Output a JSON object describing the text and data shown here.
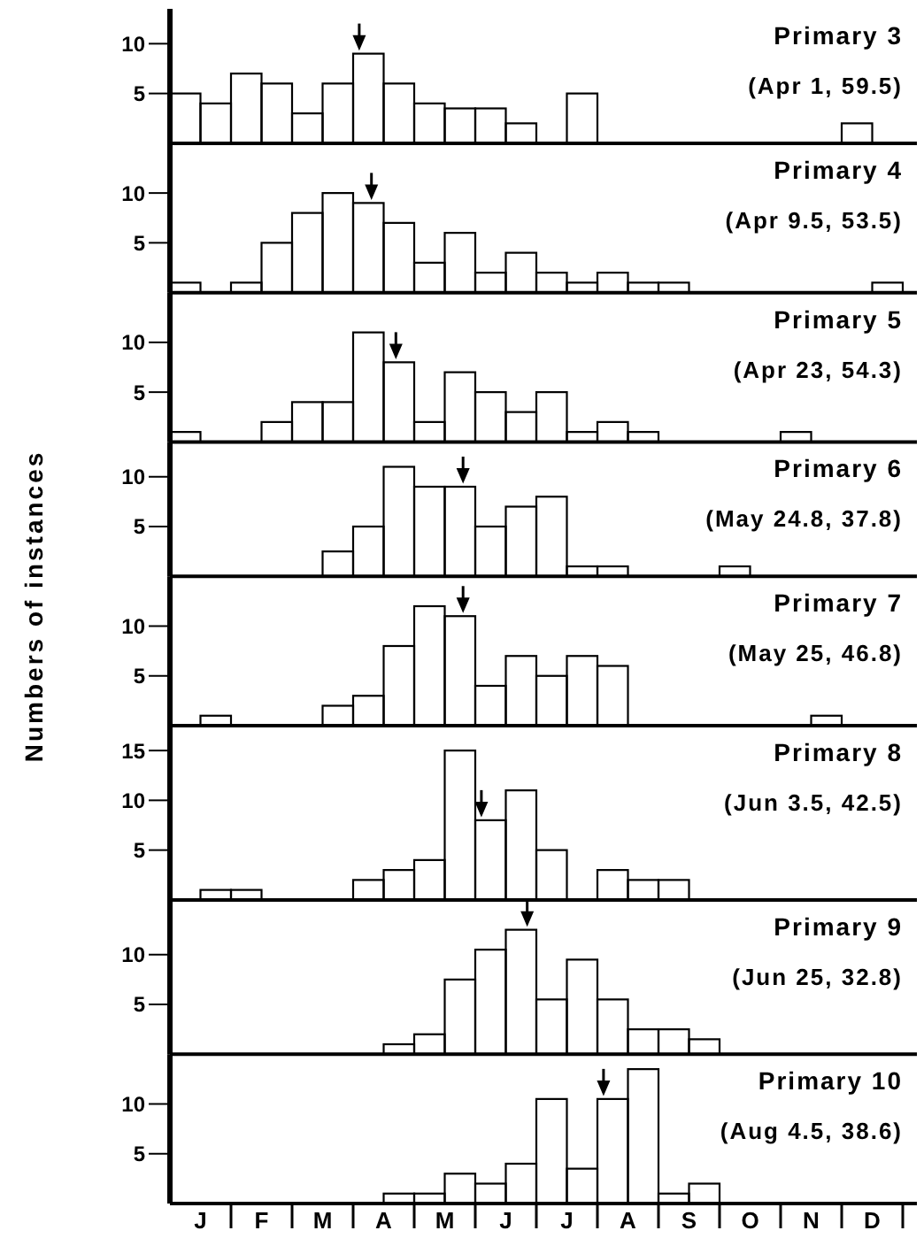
{
  "chart_data": [
    {
      "type": "bar",
      "title": "Primary 3",
      "subtitle": "(Apr 1, 59.5)",
      "categories": [
        null,
        null,
        null,
        null,
        null,
        null,
        null,
        null,
        null,
        null,
        null,
        null
      ],
      "series": [
        {
          "color": "#000000",
          "values": [
            5,
            7,
            3,
            9,
            4,
            3.5,
            0,
            0,
            0,
            0,
            0,
            2
          ]
        },
        {
          "color": "#000000",
          "values": [
            4,
            6,
            6,
            6,
            3.5,
            2,
            5,
            0,
            0,
            0,
            0,
            0
          ]
        }
      ],
      "ylim": [
        0,
        13.5
      ],
      "yticks": [
        5,
        10
      ]
    },
    {
      "type": "bar",
      "title": "Primary 4",
      "subtitle": "(Apr 9.5, 53.5)",
      "categories": [
        null,
        null,
        null,
        null,
        null,
        null,
        null,
        null,
        null,
        null,
        null,
        null
      ],
      "series": [
        {
          "color": "#000000",
          "values": [
            1,
            1,
            8,
            9,
            3,
            2,
            2,
            2,
            1,
            0,
            0,
            0
          ]
        },
        {
          "color": "#000000",
          "values": [
            0,
            5,
            10,
            7,
            6,
            4,
            1,
            1,
            0,
            0,
            0,
            1
          ]
        }
      ],
      "ylim": [
        0,
        15
      ],
      "yticks": [
        5,
        10
      ]
    },
    {
      "type": "bar",
      "title": "Primary 5",
      "subtitle": "(Apr 23, 54.3)",
      "categories": [
        null,
        null,
        null,
        null,
        null,
        null,
        null,
        null,
        null,
        null,
        null,
        null
      ],
      "series": [
        {
          "color": "#000000",
          "values": [
            1,
            0,
            4,
            11,
            2,
            5,
            5,
            2,
            0,
            0,
            1,
            0
          ]
        },
        {
          "color": "#000000",
          "values": [
            0,
            2,
            4,
            8,
            7,
            3,
            1,
            1,
            0,
            0,
            0,
            0
          ]
        }
      ],
      "ylim": [
        0,
        15
      ],
      "yticks": [
        5,
        10
      ]
    },
    {
      "type": "bar",
      "title": "Primary 6",
      "subtitle": "(May 24.8, 37.8)",
      "categories": [
        null,
        null,
        null,
        null,
        null,
        null,
        null,
        null,
        null,
        null,
        null,
        null
      ],
      "series": [
        {
          "color": "#000000",
          "values": [
            0,
            0,
            0,
            5,
            9,
            5,
            8,
            1,
            0,
            1,
            0,
            0
          ]
        },
        {
          "color": "#000000",
          "values": [
            0,
            0,
            2.5,
            11,
            9,
            7,
            1,
            0,
            0,
            0,
            0,
            0
          ]
        }
      ],
      "ylim": [
        0,
        13.5
      ],
      "yticks": [
        5,
        10
      ]
    },
    {
      "type": "bar",
      "title": "Primary 7",
      "subtitle": "(May 25, 46.8)",
      "ylabel": "Numbers of instances",
      "categories": [
        null,
        null,
        null,
        null,
        null,
        null,
        null,
        null,
        null,
        null,
        null,
        null
      ],
      "series": [
        {
          "color": "#000000",
          "values": [
            0,
            0,
            0,
            3,
            12,
            4,
            5,
            6,
            0,
            0,
            0,
            0
          ]
        },
        {
          "color": "#000000",
          "values": [
            1,
            0,
            2,
            8,
            11,
            7,
            7,
            0,
            0,
            0,
            1,
            0
          ]
        }
      ],
      "ylim": [
        0,
        15
      ],
      "yticks": [
        5,
        10
      ]
    },
    {
      "type": "bar",
      "title": "Primary 8",
      "subtitle": "(Jun 3.5, 42.5)",
      "categories": [
        null,
        null,
        null,
        null,
        null,
        null,
        null,
        null,
        null,
        null,
        null,
        null
      ],
      "series": [
        {
          "color": "#000000",
          "values": [
            0,
            1,
            0,
            2,
            4,
            8,
            5,
            3,
            2,
            0,
            0,
            0
          ]
        },
        {
          "color": "#000000",
          "values": [
            1,
            0,
            0,
            3,
            15,
            11,
            0,
            2,
            0,
            0,
            0,
            0
          ]
        }
      ],
      "ylim": [
        0,
        17.5
      ],
      "yticks": [
        5,
        10,
        15
      ]
    },
    {
      "type": "bar",
      "title": "Primary 9",
      "subtitle": "(Jun 25, 32.8)",
      "categories": [
        null,
        null,
        null,
        null,
        null,
        null,
        null,
        null,
        null,
        null,
        null,
        null
      ],
      "series": [
        {
          "color": "#000000",
          "values": [
            0,
            0,
            0,
            0,
            2,
            10.5,
            5.5,
            5.5,
            2.5,
            0,
            0,
            0
          ]
        },
        {
          "color": "#000000",
          "values": [
            0,
            0,
            0,
            1,
            7.5,
            12.5,
            9.5,
            2.5,
            1.5,
            0,
            0,
            0
          ]
        }
      ],
      "ylim": [
        0,
        15.5
      ],
      "yticks": [
        5,
        10
      ]
    },
    {
      "type": "bar",
      "title": "Primary 10",
      "subtitle": "(Aug 4.5, 38.6)",
      "categories": [
        "J",
        "F",
        "M",
        "A",
        "M",
        "J",
        "J",
        "A",
        "S",
        "O",
        "N",
        "D"
      ],
      "series": [
        {
          "color": "#000000",
          "values": [
            0,
            0,
            0,
            0,
            1,
            2,
            10.5,
            10.5,
            1,
            0,
            0,
            0
          ]
        },
        {
          "color": "#000000",
          "values": [
            0,
            0,
            0,
            1,
            3,
            4,
            3.5,
            13.5,
            2,
            0,
            0,
            0
          ]
        }
      ],
      "ylim": [
        0,
        15
      ],
      "yticks": [
        5,
        10
      ]
    }
  ]
}
